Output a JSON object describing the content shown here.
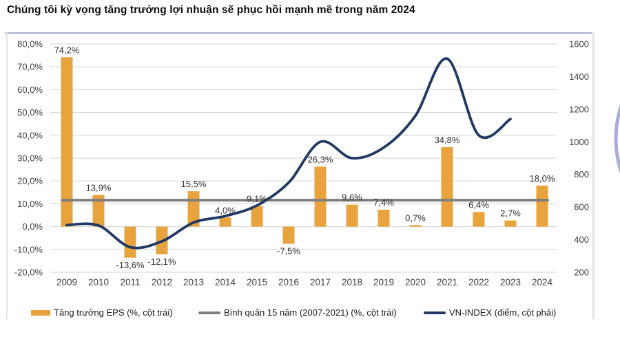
{
  "page": {
    "title": "Chúng tôi kỳ vọng tăng trưởng lợi nhuận sẽ phục hồi mạnh mẽ trong năm 2024"
  },
  "colors": {
    "bar": "#E8A33D",
    "average_line": "#7F7F7F",
    "vnindex_line": "#1F3864",
    "gridline": "#D9D9D9",
    "axis_text": "#3F3F3F",
    "data_label_text": "#303030",
    "frame_top": "#A9ACD8",
    "frame_side": "#E4E4E4",
    "decor_arc": "#999ED3"
  },
  "legend": {
    "items": [
      {
        "label": "Tăng trưởng EPS (%, cột trái)",
        "swatch": "bar"
      },
      {
        "label": "Bình quân 15 năm (2007-2021) (%, cột trái)",
        "swatch": "line-gray"
      },
      {
        "label": "VN-INDEX (điểm, cột phải)",
        "swatch": "line-navy"
      }
    ]
  },
  "chart_data": {
    "type": "combo: bar + reference line (left % axis) + smooth line (right index axis)",
    "title": "Chúng tôi kỳ vọng tăng trưởng lợi nhuận sẽ phục hồi mạnh mẽ trong năm 2024",
    "categories": [
      "2009",
      "2010",
      "2011",
      "2012",
      "2013",
      "2014",
      "2015",
      "2016",
      "2017",
      "2018",
      "2019",
      "2020",
      "2021",
      "2022",
      "2023",
      "2024"
    ],
    "left_axis": {
      "unit": "%",
      "min": -20,
      "max": 80,
      "step": 10,
      "tick_labels": [
        "80,0%",
        "70,0%",
        "60,0%",
        "50,0%",
        "40,0%",
        "30,0%",
        "20,0%",
        "10,0%",
        "0,0%",
        "-10,0%",
        "-20,0%"
      ],
      "tick_values": [
        80,
        70,
        60,
        50,
        40,
        30,
        20,
        10,
        0,
        -10,
        -20
      ]
    },
    "right_axis": {
      "unit": "điểm",
      "min": 200,
      "max": 1600,
      "step": 200,
      "tick_labels": [
        "1600",
        "1400",
        "1200",
        "1000",
        "800",
        "600",
        "400",
        "200"
      ],
      "tick_values": [
        1600,
        1400,
        1200,
        1000,
        800,
        600,
        400,
        200
      ]
    },
    "grid": "horizontal",
    "legend_position": "bottom",
    "series": [
      {
        "name": "Tăng trưởng EPS (%, cột trái)",
        "type": "bar",
        "axis": "left",
        "values": [
          74.2,
          13.9,
          -13.6,
          -12.1,
          15.5,
          4.0,
          9.1,
          -7.5,
          26.3,
          9.6,
          7.4,
          0.7,
          34.8,
          6.4,
          2.7,
          18.0
        ],
        "labels": [
          "74,2%",
          "13,9%",
          "-13,6%",
          "-12,1%",
          "15,5%",
          "4,0%",
          "9,1%",
          "-7,5%",
          "26,3%",
          "9,6%",
          "7,4%",
          "0,7%",
          "34,8%",
          "6,4%",
          "2,7%",
          "18,0%"
        ]
      },
      {
        "name": "Bình quân 15 năm (2007-2021) (%, cột trái)",
        "type": "reference-line",
        "axis": "left",
        "value": 11.6
      },
      {
        "name": "VN-INDEX (điểm, cột phải)",
        "type": "line",
        "axis": "right",
        "categories_covered": [
          "2009",
          "2010",
          "2011",
          "2012",
          "2013",
          "2014",
          "2015",
          "2016",
          "2017",
          "2018",
          "2019",
          "2020",
          "2021",
          "2022",
          "2023"
        ],
        "values": [
          490,
          487,
          354,
          390,
          505,
          545,
          610,
          750,
          1000,
          900,
          965,
          1160,
          1510,
          1040,
          1140
        ]
      }
    ]
  }
}
